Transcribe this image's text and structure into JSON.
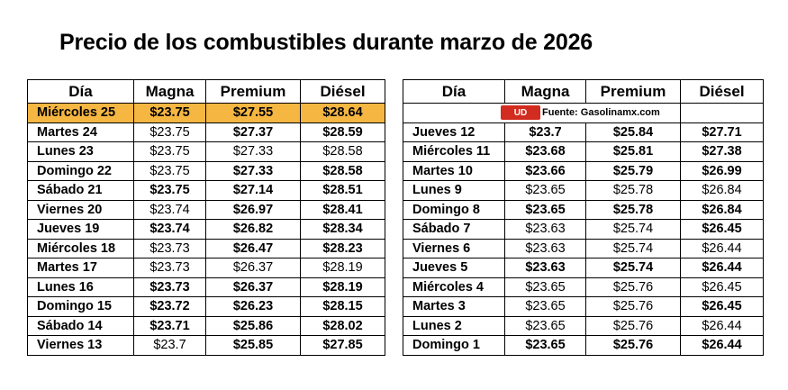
{
  "title": "Precio de los combustibles durante marzo de 2026",
  "headers": [
    "Día",
    "Magna",
    "Premium",
    "Diésel"
  ],
  "source": "Fuente: Gasolinamx.com",
  "colors": {
    "highlight": "#f5b642",
    "logo": "#d22b1f"
  },
  "logo_icon": "ud-logo-icon",
  "left_rows": [
    {
      "day": "Miércoles 25",
      "magna": "$23.75",
      "premium": "$27.55",
      "diesel": "$28.64",
      "highlight": true,
      "bold": [
        true,
        true,
        true
      ]
    },
    {
      "day": "Martes 24",
      "magna": "$23.75",
      "premium": "$27.37",
      "diesel": "$28.59",
      "bold": [
        false,
        true,
        true
      ]
    },
    {
      "day": "Lunes 23",
      "magna": "$23.75",
      "premium": "$27.33",
      "diesel": "$28.58",
      "bold": [
        false,
        false,
        false
      ]
    },
    {
      "day": "Domingo 22",
      "magna": "$23.75",
      "premium": "$27.33",
      "diesel": "$28.58",
      "bold": [
        false,
        true,
        true
      ]
    },
    {
      "day": "Sábado 21",
      "magna": "$23.75",
      "premium": "$27.14",
      "diesel": "$28.51",
      "bold": [
        true,
        true,
        true
      ]
    },
    {
      "day": "Viernes 20",
      "magna": "$23.74",
      "premium": "$26.97",
      "diesel": "$28.41",
      "bold": [
        false,
        true,
        true
      ]
    },
    {
      "day": "Jueves 19",
      "magna": "$23.74",
      "premium": "$26.82",
      "diesel": "$28.34",
      "bold": [
        true,
        true,
        true
      ]
    },
    {
      "day": "Miércoles 18",
      "magna": "$23.73",
      "premium": "$26.47",
      "diesel": "$28.23",
      "bold": [
        false,
        true,
        true
      ]
    },
    {
      "day": "Martes 17",
      "magna": "$23.73",
      "premium": "$26.37",
      "diesel": "$28.19",
      "bold": [
        false,
        false,
        false
      ]
    },
    {
      "day": "Lunes 16",
      "magna": "$23.73",
      "premium": "$26.37",
      "diesel": "$28.19",
      "bold": [
        true,
        true,
        true
      ]
    },
    {
      "day": "Domingo 15",
      "magna": "$23.72",
      "premium": "$26.23",
      "diesel": "$28.15",
      "bold": [
        true,
        true,
        true
      ]
    },
    {
      "day": "Sábado 14",
      "magna": "$23.71",
      "premium": "$25.86",
      "diesel": "$28.02",
      "bold": [
        true,
        true,
        true
      ]
    },
    {
      "day": "Viernes 13",
      "magna": "$23.7",
      "premium": "$25.85",
      "diesel": "$27.85",
      "bold": [
        false,
        true,
        true
      ]
    }
  ],
  "right_rows": [
    {
      "day": "Jueves 12",
      "magna": "$23.7",
      "premium": "$25.84",
      "diesel": "$27.71",
      "bold": [
        true,
        true,
        true
      ]
    },
    {
      "day": "Miércoles 11",
      "magna": "$23.68",
      "premium": "$25.81",
      "diesel": "$27.38",
      "bold": [
        true,
        true,
        true
      ]
    },
    {
      "day": "Martes 10",
      "magna": "$23.66",
      "premium": "$25.79",
      "diesel": "$26.99",
      "bold": [
        true,
        true,
        true
      ]
    },
    {
      "day": "Lunes 9",
      "magna": "$23.65",
      "premium": "$25.78",
      "diesel": "$26.84",
      "bold": [
        false,
        false,
        false
      ]
    },
    {
      "day": "Domingo 8",
      "magna": "$23.65",
      "premium": "$25.78",
      "diesel": "$26.84",
      "bold": [
        true,
        true,
        true
      ]
    },
    {
      "day": "Sábado 7",
      "magna": "$23.63",
      "premium": "$25.74",
      "diesel": "$26.45",
      "bold": [
        false,
        false,
        true
      ]
    },
    {
      "day": "Viernes 6",
      "magna": "$23.63",
      "premium": "$25.74",
      "diesel": "$26.44",
      "bold": [
        false,
        false,
        false
      ]
    },
    {
      "day": "Jueves 5",
      "magna": "$23.63",
      "premium": "$25.74",
      "diesel": "$26.44",
      "bold": [
        true,
        true,
        true
      ]
    },
    {
      "day": "Miércoles 4",
      "magna": "$23.65",
      "premium": "$25.76",
      "diesel": "$26.45",
      "bold": [
        false,
        false,
        false
      ]
    },
    {
      "day": "Martes 3",
      "magna": "$23.65",
      "premium": "$25.76",
      "diesel": "$26.45",
      "bold": [
        false,
        false,
        true
      ]
    },
    {
      "day": "Lunes 2",
      "magna": "$23.65",
      "premium": "$25.76",
      "diesel": "$26.44",
      "bold": [
        false,
        false,
        false
      ]
    },
    {
      "day": "Domingo 1",
      "magna": "$23.65",
      "premium": "$25.76",
      "diesel": "$26.44",
      "bold": [
        true,
        true,
        true
      ]
    }
  ]
}
